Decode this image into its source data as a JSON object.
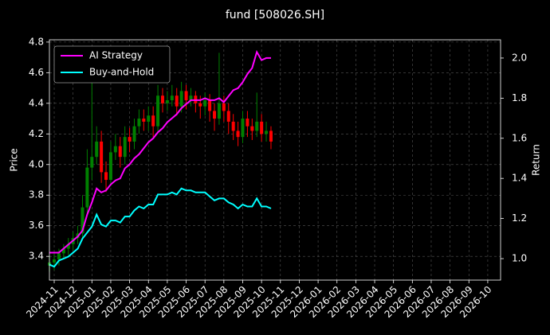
{
  "chart_data": {
    "type": "candlestick",
    "title": "fund [508026.SH]",
    "ylabel": "Price",
    "y2label": "Return",
    "x": [
      -0.25,
      0,
      0.25,
      0.5,
      0.75,
      1,
      1.25,
      1.5,
      1.75,
      2,
      2.25,
      2.5,
      2.75,
      3,
      3.25,
      3.5,
      3.75,
      4,
      4.25,
      4.5,
      4.75,
      5,
      5.25,
      5.5,
      5.75,
      6,
      6.25,
      6.5,
      6.75,
      7,
      7.25,
      7.5,
      7.75,
      8,
      8.25,
      8.5,
      8.75,
      9,
      9.25,
      9.5,
      9.75,
      10,
      10.25,
      10.5,
      10.75,
      11,
      11.25,
      11.5
    ],
    "open": [
      3.34,
      3.36,
      3.38,
      3.42,
      3.45,
      3.48,
      3.52,
      3.55,
      3.72,
      3.98,
      4.05,
      4.15,
      3.95,
      3.9,
      4.08,
      4.12,
      4.05,
      4.18,
      4.15,
      4.25,
      4.3,
      4.28,
      4.32,
      4.25,
      4.45,
      4.4,
      4.42,
      4.45,
      4.38,
      4.48,
      4.42,
      4.45,
      4.4,
      4.38,
      4.42,
      4.35,
      4.3,
      4.4,
      4.35,
      4.28,
      4.22,
      4.18,
      4.3,
      4.25,
      4.22,
      4.28,
      4.2,
      4.22
    ],
    "high": [
      3.4,
      3.42,
      3.45,
      3.48,
      3.52,
      3.56,
      3.6,
      3.8,
      4.1,
      4.55,
      4.25,
      4.22,
      4.02,
      4.15,
      4.2,
      4.18,
      4.25,
      4.24,
      4.3,
      4.36,
      4.36,
      4.38,
      4.38,
      4.52,
      4.5,
      4.48,
      4.52,
      4.5,
      4.54,
      4.52,
      4.5,
      4.48,
      4.45,
      4.47,
      4.46,
      4.4,
      4.73,
      4.45,
      4.4,
      4.33,
      4.28,
      4.35,
      4.35,
      4.3,
      4.47,
      4.33,
      4.28,
      4.25
    ],
    "low": [
      3.3,
      3.31,
      3.34,
      3.38,
      3.41,
      3.44,
      3.48,
      3.52,
      3.68,
      3.9,
      4.0,
      3.88,
      3.82,
      3.86,
      4.03,
      3.98,
      4.0,
      4.08,
      4.1,
      4.2,
      4.22,
      4.22,
      4.18,
      4.2,
      4.34,
      4.35,
      4.38,
      4.32,
      4.34,
      4.36,
      4.38,
      4.34,
      4.3,
      4.32,
      4.28,
      4.22,
      4.26,
      4.28,
      4.2,
      4.16,
      4.12,
      4.14,
      4.18,
      4.16,
      4.18,
      4.15,
      4.15,
      4.1
    ],
    "close": [
      3.36,
      3.38,
      3.42,
      3.45,
      3.48,
      3.52,
      3.55,
      3.72,
      3.98,
      4.05,
      4.15,
      3.95,
      3.9,
      4.08,
      4.12,
      4.05,
      4.18,
      4.15,
      4.25,
      4.3,
      4.28,
      4.32,
      4.25,
      4.45,
      4.4,
      4.42,
      4.45,
      4.38,
      4.48,
      4.42,
      4.45,
      4.4,
      4.38,
      4.42,
      4.35,
      4.3,
      4.4,
      4.35,
      4.28,
      4.22,
      4.18,
      4.3,
      4.25,
      4.22,
      4.28,
      4.2,
      4.22,
      4.15
    ],
    "up_color": "#008000",
    "down_color": "#ff0000",
    "series": [
      {
        "name": "AI Strategy",
        "color": "#ff00ff",
        "axis": "y2",
        "values": [
          1.03,
          1.03,
          1.03,
          1.05,
          1.07,
          1.09,
          1.11,
          1.14,
          1.22,
          1.28,
          1.35,
          1.33,
          1.34,
          1.37,
          1.39,
          1.4,
          1.45,
          1.47,
          1.5,
          1.52,
          1.55,
          1.58,
          1.6,
          1.63,
          1.65,
          1.68,
          1.7,
          1.72,
          1.75,
          1.77,
          1.79,
          1.79,
          1.79,
          1.8,
          1.79,
          1.79,
          1.8,
          1.78,
          1.81,
          1.84,
          1.85,
          1.88,
          1.92,
          1.95,
          2.03,
          1.99,
          2.0,
          2.0
        ]
      },
      {
        "name": "Buy-and-Hold",
        "color": "#00ffff",
        "axis": "y2",
        "values": [
          0.97,
          0.96,
          0.99,
          1.0,
          1.01,
          1.03,
          1.05,
          1.1,
          1.13,
          1.16,
          1.22,
          1.17,
          1.16,
          1.19,
          1.19,
          1.18,
          1.21,
          1.21,
          1.24,
          1.26,
          1.25,
          1.27,
          1.27,
          1.32,
          1.32,
          1.32,
          1.33,
          1.32,
          1.35,
          1.34,
          1.34,
          1.33,
          1.33,
          1.33,
          1.31,
          1.29,
          1.3,
          1.3,
          1.28,
          1.27,
          1.25,
          1.27,
          1.26,
          1.26,
          1.3,
          1.26,
          1.26,
          1.25
        ]
      }
    ],
    "xlim": [
      -0.254,
      23.68
    ],
    "xticks": [
      {
        "value": 0,
        "label": "2024-11"
      },
      {
        "value": 1,
        "label": "2024-12"
      },
      {
        "value": 2,
        "label": "2025-01"
      },
      {
        "value": 3,
        "label": "2025-02"
      },
      {
        "value": 4,
        "label": "2025-03"
      },
      {
        "value": 5,
        "label": "2025-04"
      },
      {
        "value": 6,
        "label": "2025-05"
      },
      {
        "value": 7,
        "label": "2025-06"
      },
      {
        "value": 8,
        "label": "2025-07"
      },
      {
        "value": 9,
        "label": "2025-08"
      },
      {
        "value": 10,
        "label": "2025-09"
      },
      {
        "value": 11,
        "label": "2025-10"
      },
      {
        "value": 12,
        "label": "2025-11"
      },
      {
        "value": 13,
        "label": "2025-12"
      },
      {
        "value": 14,
        "label": "2026-01"
      },
      {
        "value": 15,
        "label": "2026-02"
      },
      {
        "value": 16,
        "label": "2026-03"
      },
      {
        "value": 17,
        "label": "2026-04"
      },
      {
        "value": 18,
        "label": "2026-05"
      },
      {
        "value": 19,
        "label": "2026-06"
      },
      {
        "value": 20,
        "label": "2026-07"
      },
      {
        "value": 21,
        "label": "2026-08"
      },
      {
        "value": 22,
        "label": "2026-09"
      },
      {
        "value": 23,
        "label": "2026-10"
      }
    ],
    "ylim": [
      3.245,
      4.815
    ],
    "yticks": [
      3.4,
      3.6,
      3.8,
      {
        "value": 4,
        "label": "4.0"
      },
      4.2,
      4.4,
      4.6,
      4.8
    ],
    "y2lim": [
      0.893,
      2.091
    ],
    "y2ticks": [
      {
        "value": 1,
        "label": "1.0"
      },
      1.2,
      1.4,
      1.6,
      1.8,
      {
        "value": 2,
        "label": "2.0"
      }
    ],
    "grid": true,
    "legend": "upper left"
  }
}
